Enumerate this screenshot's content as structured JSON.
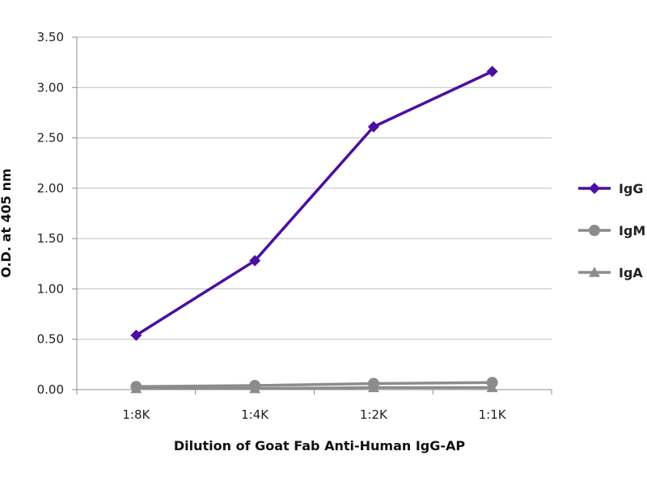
{
  "chart_data": {
    "type": "line",
    "categories": [
      "1:8K",
      "1:4K",
      "1:2K",
      "1:1K"
    ],
    "series": [
      {
        "name": "IgG",
        "values": [
          0.54,
          1.28,
          2.61,
          3.16
        ],
        "color": "#4b0fa0",
        "marker": "diamond"
      },
      {
        "name": "IgM",
        "values": [
          0.03,
          0.04,
          0.06,
          0.07
        ],
        "color": "#8c8c8c",
        "marker": "circle"
      },
      {
        "name": "IgA",
        "values": [
          0.01,
          0.01,
          0.02,
          0.02
        ],
        "color": "#8c8c8c",
        "marker": "triangle"
      }
    ],
    "yticks": [
      "0.00",
      "0.50",
      "1.00",
      "1.50",
      "2.00",
      "2.50",
      "3.00",
      "3.50"
    ],
    "ylim": [
      0,
      3.5
    ],
    "xlabel": "Dilution of Goat Fab Anti-Human IgG-AP",
    "ylabel": "O.D. at 405 nm",
    "grid": true,
    "legend": "right"
  }
}
